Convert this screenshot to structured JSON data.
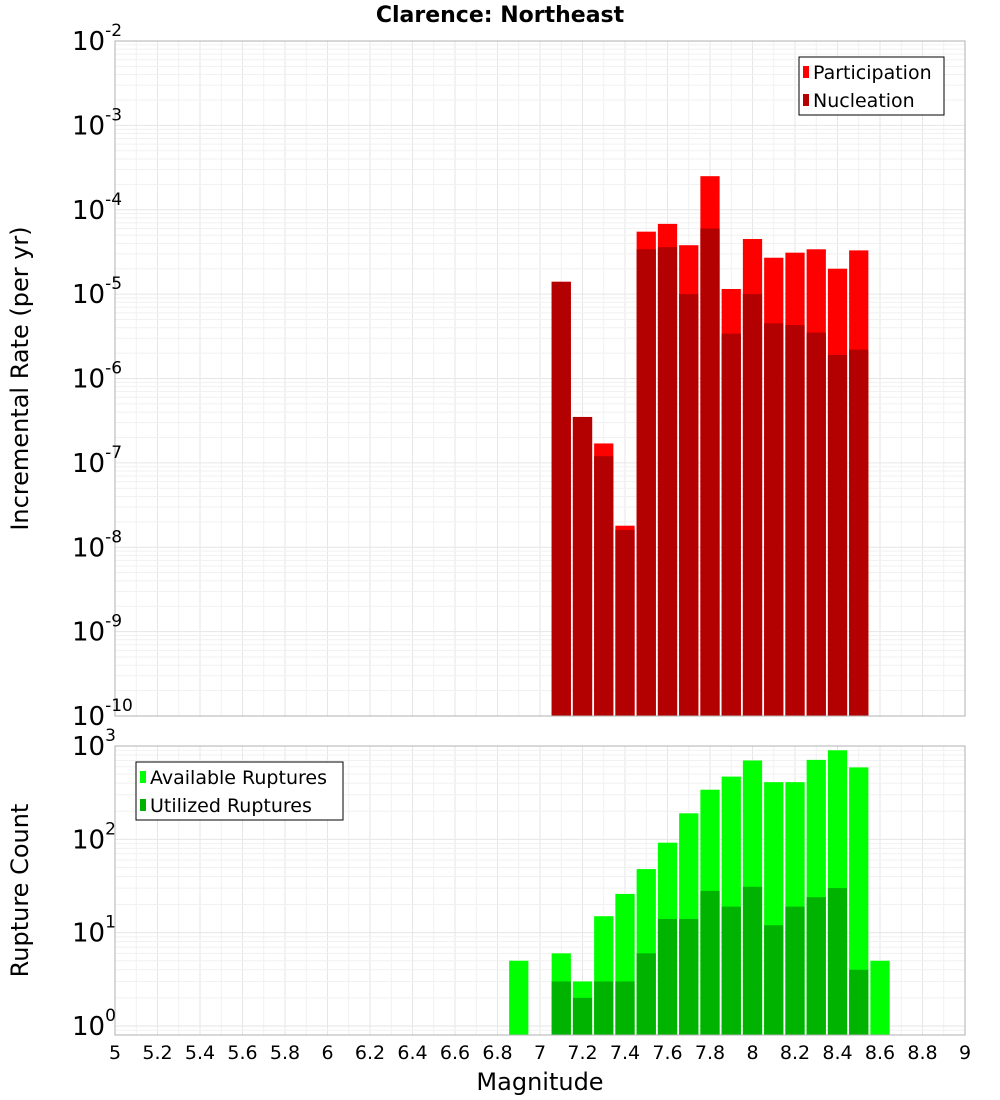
{
  "chart_data": [
    {
      "type": "bar",
      "title": "Clarence: Northeast",
      "xlabel": "",
      "ylabel": "Incremental Rate (per yr)",
      "y_scale": "log",
      "ylim": [
        1e-10,
        0.01
      ],
      "xlim": [
        5,
        9
      ],
      "bin_width": 0.1,
      "legend": {
        "placement": "top-right"
      },
      "series": [
        {
          "name": "Participation",
          "color": "#ff0000",
          "x": [
            7.1,
            7.2,
            7.3,
            7.4,
            7.5,
            7.6,
            7.7,
            7.8,
            7.9,
            8.0,
            8.1,
            8.2,
            8.3,
            8.4,
            8.5
          ],
          "values": [
            1.4e-05,
            3.5e-07,
            1.7e-07,
            1.8e-08,
            5.5e-05,
            6.8e-05,
            3.8e-05,
            0.00025,
            1.15e-05,
            4.5e-05,
            2.7e-05,
            3.1e-05,
            3.4e-05,
            2e-05,
            3.3e-05
          ]
        },
        {
          "name": "Nucleation",
          "color": "#b30000",
          "x": [
            7.1,
            7.2,
            7.3,
            7.4,
            7.5,
            7.6,
            7.7,
            7.8,
            7.9,
            8.0,
            8.1,
            8.2,
            8.3,
            8.4,
            8.5
          ],
          "values": [
            1.4e-05,
            3.5e-07,
            1.2e-07,
            1.6e-08,
            3.4e-05,
            3.6e-05,
            1e-05,
            6e-05,
            3.4e-06,
            1e-05,
            4.5e-06,
            4.3e-06,
            3.5e-06,
            1.9e-06,
            2.2e-06
          ]
        }
      ]
    },
    {
      "type": "bar",
      "title": "",
      "xlabel": "Magnitude",
      "ylabel": "Rupture Count",
      "y_scale": "log",
      "ylim": [
        0.8,
        1000
      ],
      "xlim": [
        5,
        9
      ],
      "bin_width": 0.1,
      "x_ticks": [
        "5",
        "5.2",
        "5.4",
        "5.6",
        "5.8",
        "6",
        "6.2",
        "6.4",
        "6.6",
        "6.8",
        "7",
        "7.2",
        "7.4",
        "7.6",
        "7.8",
        "8",
        "8.2",
        "8.4",
        "8.6",
        "8.8",
        "9"
      ],
      "legend": {
        "placement": "top-left"
      },
      "series": [
        {
          "name": "Available Ruptures",
          "color": "#00ff00",
          "x": [
            6.9,
            7.1,
            7.2,
            7.3,
            7.4,
            7.5,
            7.6,
            7.7,
            7.8,
            7.9,
            8.0,
            8.1,
            8.2,
            8.3,
            8.4,
            8.5,
            8.6
          ],
          "values": [
            5,
            6,
            3,
            15,
            26,
            48,
            92,
            190,
            340,
            470,
            700,
            410,
            410,
            710,
            900,
            590,
            5
          ]
        },
        {
          "name": "Utilized Ruptures",
          "color": "#00b300",
          "x": [
            7.1,
            7.2,
            7.3,
            7.4,
            7.5,
            7.6,
            7.7,
            7.8,
            7.9,
            8.0,
            8.1,
            8.2,
            8.3,
            8.4,
            8.5
          ],
          "values": [
            3,
            2,
            3,
            3,
            6,
            14,
            14,
            28,
            19,
            31,
            12,
            19,
            24,
            30,
            4
          ]
        }
      ]
    }
  ]
}
